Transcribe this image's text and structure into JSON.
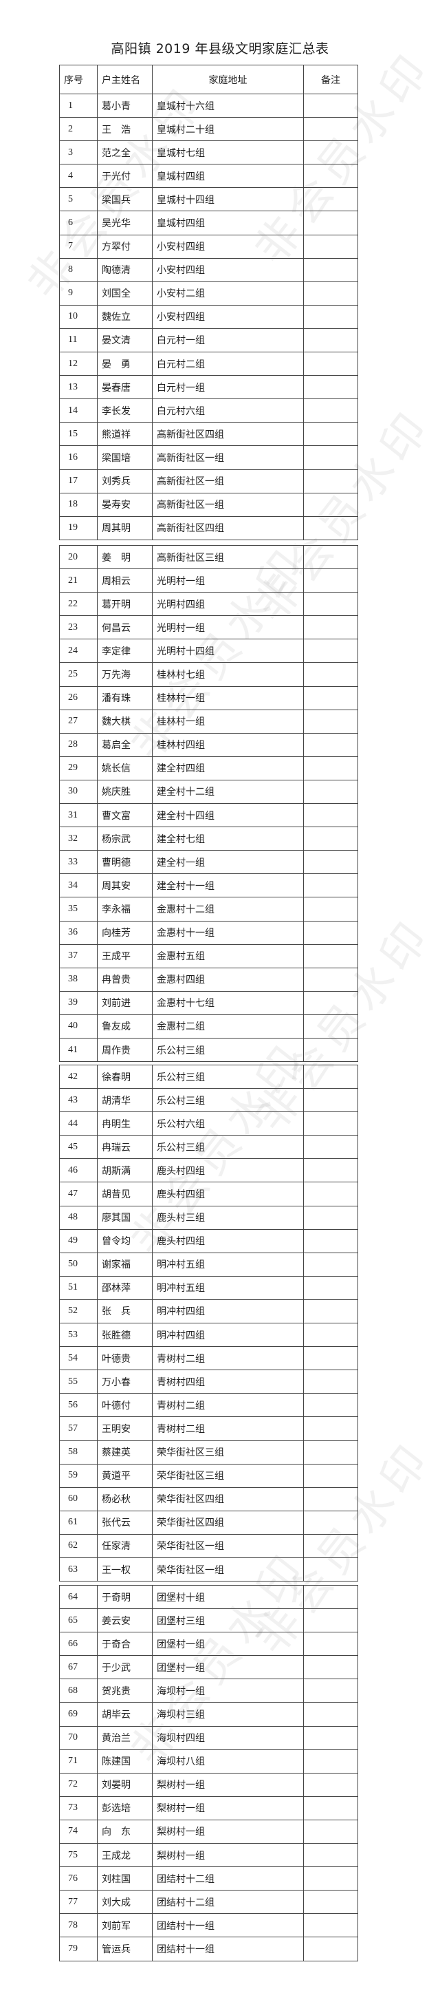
{
  "title": "高阳镇 2019 年县级文明家庭汇总表",
  "headers": {
    "index": "序号",
    "name": "户主姓名",
    "address": "家庭地址",
    "remark": "备注"
  },
  "watermark": "非会员水印",
  "rows": [
    [
      "1",
      "葛小青",
      "皇城村十六组"
    ],
    [
      "2",
      "王　浩",
      "皇城村二十组"
    ],
    [
      "3",
      "范之全",
      "皇城村七组"
    ],
    [
      "4",
      "于光付",
      "皇城村四组"
    ],
    [
      "5",
      "梁国兵",
      "皇城村十四组"
    ],
    [
      "6",
      "吴光华",
      "皇城村四组"
    ],
    [
      "7",
      "方翠付",
      "小安村四组"
    ],
    [
      "8",
      "陶德清",
      "小安村四组"
    ],
    [
      "9",
      "刘国全",
      "小安村二组"
    ],
    [
      "10",
      "魏佐立",
      "小安村四组"
    ],
    [
      "11",
      "晏文清",
      "白元村一组"
    ],
    [
      "12",
      "晏　勇",
      "白元村二组"
    ],
    [
      "13",
      "晏春唐",
      "白元村一组"
    ],
    [
      "14",
      "李长发",
      "白元村六组"
    ],
    [
      "15",
      "熊道祥",
      "高新街社区四组"
    ],
    [
      "16",
      "梁国培",
      "高新街社区一组"
    ],
    [
      "17",
      "刘秀兵",
      "高新街社区一组"
    ],
    [
      "18",
      "晏寿安",
      "高新街社区一组"
    ],
    [
      "19",
      "周其明",
      "高新街社区四组"
    ],
    [
      "20",
      "姜　明",
      "高新街社区三组"
    ],
    [
      "21",
      "周相云",
      "光明村一组"
    ],
    [
      "22",
      "葛开明",
      "光明村四组"
    ],
    [
      "23",
      "何昌云",
      "光明村一组"
    ],
    [
      "24",
      "李定律",
      "光明村十四组"
    ],
    [
      "25",
      "万先海",
      "桂林村七组"
    ],
    [
      "26",
      "潘有珠",
      "桂林村一组"
    ],
    [
      "27",
      "魏大棋",
      "桂林村一组"
    ],
    [
      "28",
      "葛启全",
      "桂林村四组"
    ],
    [
      "29",
      "姚长信",
      "建全村四组"
    ],
    [
      "30",
      "姚庆胜",
      "建全村十二组"
    ],
    [
      "31",
      "曹文富",
      "建全村十四组"
    ],
    [
      "32",
      "杨宗武",
      "建全村七组"
    ],
    [
      "33",
      "曹明德",
      "建全村一组"
    ],
    [
      "34",
      "周其安",
      "建全村十一组"
    ],
    [
      "35",
      "李永福",
      "金惠村十二组"
    ],
    [
      "36",
      "向桂芳",
      "金惠村十一组"
    ],
    [
      "37",
      "王成平",
      "金惠村五组"
    ],
    [
      "38",
      "冉曾贵",
      "金惠村四组"
    ],
    [
      "39",
      "刘前进",
      "金惠村十七组"
    ],
    [
      "40",
      "鲁友成",
      "金惠村二组"
    ],
    [
      "41",
      "周作贵",
      "乐公村三组"
    ],
    [
      "42",
      "徐春明",
      "乐公村三组"
    ],
    [
      "43",
      "胡清华",
      "乐公村三组"
    ],
    [
      "44",
      "冉明生",
      "乐公村六组"
    ],
    [
      "45",
      "冉瑞云",
      "乐公村三组"
    ],
    [
      "46",
      "胡斯满",
      "鹿头村四组"
    ],
    [
      "47",
      "胡昔见",
      "鹿头村四组"
    ],
    [
      "48",
      "廖其国",
      "鹿头村三组"
    ],
    [
      "49",
      "曾令均",
      "鹿头村四组"
    ],
    [
      "50",
      "谢家福",
      "明冲村五组"
    ],
    [
      "51",
      "邵林萍",
      "明冲村五组"
    ],
    [
      "52",
      "张　兵",
      "明冲村四组"
    ],
    [
      "53",
      "张胜德",
      "明冲村四组"
    ],
    [
      "54",
      "叶德贵",
      "青树村二组"
    ],
    [
      "55",
      "万小春",
      "青树村四组"
    ],
    [
      "56",
      "叶德付",
      "青树村二组"
    ],
    [
      "57",
      "王明安",
      "青树村二组"
    ],
    [
      "58",
      "蔡建英",
      "荣华街社区三组"
    ],
    [
      "59",
      "黄道平",
      "荣华街社区三组"
    ],
    [
      "60",
      "杨必秋",
      "荣华街社区四组"
    ],
    [
      "61",
      "张代云",
      "荣华街社区四组"
    ],
    [
      "62",
      "任家清",
      "荣华街社区一组"
    ],
    [
      "63",
      "王一权",
      "荣华街社区一组"
    ],
    [
      "64",
      "于奇明",
      "团堡村十组"
    ],
    [
      "65",
      "姜云安",
      "团堡村三组"
    ],
    [
      "66",
      "于奇合",
      "团堡村一组"
    ],
    [
      "67",
      "于少武",
      "团堡村一组"
    ],
    [
      "68",
      "贺兆贵",
      "海坝村一组"
    ],
    [
      "69",
      "胡毕云",
      "海坝村三组"
    ],
    [
      "70",
      "黄治兰",
      "海坝村四组"
    ],
    [
      "71",
      "陈建国",
      "海坝村八组"
    ],
    [
      "72",
      "刘晏明",
      "梨树村一组"
    ],
    [
      "73",
      "彭选培",
      "梨树村一组"
    ],
    [
      "74",
      "向　东",
      "梨树村一组"
    ],
    [
      "75",
      "王成龙",
      "梨树村一组"
    ],
    [
      "76",
      "刘柱国",
      "团结村十二组"
    ],
    [
      "77",
      "刘大成",
      "团结村十二组"
    ],
    [
      "78",
      "刘前军",
      "团结村十一组"
    ],
    [
      "79",
      "管运兵",
      "团结村十一组"
    ]
  ]
}
